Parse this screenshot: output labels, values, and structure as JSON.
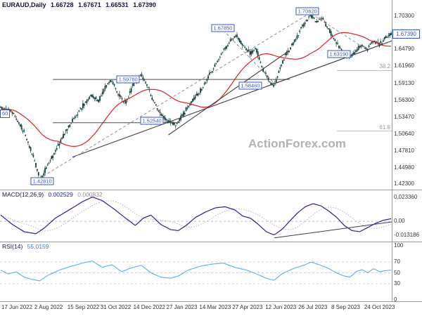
{
  "header": {
    "symbol": "EURAUD,Daily",
    "open": "1.66728",
    "high": "1.67671",
    "low": "1.66531",
    "close": "1.67390"
  },
  "watermark": "ActionForex.com",
  "indicators": {
    "macd": {
      "label": "MACD(12,26,9)",
      "value": "0.002529",
      "signal_value": "0.000832",
      "axis_labels": [
        {
          "text": "0.023360",
          "v": 0.02336
        },
        {
          "text": "0.00",
          "v": 0
        },
        {
          "text": "-0.013186",
          "v": -0.013186
        }
      ]
    },
    "rsi": {
      "label": "RSI(14)",
      "value": "55.0159",
      "axis_labels": [
        {
          "text": "100",
          "v": 100
        },
        {
          "text": "70",
          "v": 70
        },
        {
          "text": "50",
          "v": 50
        },
        {
          "text": "30",
          "v": 30
        },
        {
          "text": "0",
          "v": 0
        }
      ],
      "levels": [
        70,
        50,
        30
      ]
    }
  },
  "axis": {
    "current_price": "1.67390",
    "main_labels": [
      {
        "text": "1.70300",
        "p": 1.703
      },
      {
        "text": "1.64790",
        "p": 1.6479
      },
      {
        "text": "1.61960",
        "p": 1.6196
      },
      {
        "text": "1.59130",
        "p": 1.5913
      },
      {
        "text": "1.56300",
        "p": 1.563
      },
      {
        "text": "1.53470",
        "p": 1.5347
      },
      {
        "text": "1.50640",
        "p": 1.5064
      },
      {
        "text": "1.47810",
        "p": 1.4781
      },
      {
        "text": "1.44980",
        "p": 1.4498
      },
      {
        "text": "1.42300",
        "p": 1.423
      }
    ],
    "dates": [
      "17 Jun 2022",
      "2 Aug 2022",
      "15 Sep 2022",
      "31 Oct 2022",
      "14 Dec 2022",
      "27 Jan 2023",
      "14 Mar 2023",
      "27 Apr 2023",
      "12 Jun 2023",
      "26 Jul 2023",
      "8 Sep 2023",
      "24 Oct 2023"
    ]
  },
  "annotations": {
    "price_callouts": [
      {
        "text": "1.70620",
        "x": 0.785,
        "p": 1.7062,
        "dy": -5
      },
      {
        "text": "1.67850",
        "x": 0.569,
        "p": 1.6785,
        "dy": -4
      },
      {
        "text": "1.63190",
        "x": 0.865,
        "p": 1.6319,
        "dy": -7
      },
      {
        "text": "1.59760",
        "x": 0.327,
        "p": 1.5976,
        "dy": 0
      },
      {
        "text": "1.58460",
        "x": 0.639,
        "p": 1.5846,
        "dy": -2
      },
      {
        "text": "1.52540",
        "x": 0.388,
        "p": 1.5254,
        "dy": -3
      },
      {
        "text": "1.42810",
        "x": 0.108,
        "p": 1.4281,
        "dy": 0
      }
    ],
    "left_partial_label": {
      "text": "60",
      "p": 1.54
    },
    "fib_labels": [
      {
        "text": "38.2",
        "p": 1.6125
      },
      {
        "text": "61.8",
        "p": 1.5115
      }
    ],
    "sr_lines": [
      {
        "p": 1.5976,
        "x1": 0.135,
        "x2": 0.74
      },
      {
        "p": 1.5254,
        "x1": 0.135,
        "x2": 0.46
      }
    ],
    "trend_lines": [
      {
        "x1": 0.185,
        "p1": 1.468,
        "x2": 1.0,
        "p2": 1.662
      },
      {
        "x1": 0.43,
        "p1": 1.505,
        "x2": 0.73,
        "p2": 1.642
      }
    ],
    "dashed_lines": [
      {
        "x1": 0.1,
        "p1": 1.432,
        "x2": 0.795,
        "p2": 1.71
      },
      {
        "x1": 0.57,
        "p1": 1.68,
        "x2": 0.705,
        "p2": 1.588
      },
      {
        "x1": 0.795,
        "p1": 1.707,
        "x2": 0.935,
        "p2": 1.648
      }
    ],
    "macd_trend_line": {
      "x1": 0.7,
      "v1": -0.016,
      "x2": 1.0,
      "v2": -0.0006
    }
  },
  "chart_data": {
    "type": "candlestick",
    "symbol": "EURAUD",
    "timeframe": "Daily",
    "title": "EURAUD Daily chart with MACD and RSI",
    "ohlc_display": {
      "open": 1.66728,
      "high": 1.67671,
      "low": 1.66531,
      "close": 1.6739
    },
    "y_range": [
      1.416,
      1.728
    ],
    "x_range_dates": [
      "17 Jun 2022",
      "24 Oct 2023"
    ],
    "key_levels": [
      1.7062,
      1.6785,
      1.6319,
      1.5976,
      1.5846,
      1.5254,
      1.4281
    ],
    "ma_window_candles": 45,
    "price_path": [
      [
        0,
        1.551
      ],
      [
        0.03,
        1.543
      ],
      [
        0.06,
        1.512
      ],
      [
        0.085,
        1.468
      ],
      [
        0.102,
        1.43
      ],
      [
        0.12,
        1.452
      ],
      [
        0.15,
        1.49
      ],
      [
        0.185,
        1.53
      ],
      [
        0.21,
        1.552
      ],
      [
        0.235,
        1.572
      ],
      [
        0.25,
        1.56
      ],
      [
        0.27,
        1.585
      ],
      [
        0.285,
        1.597
      ],
      [
        0.3,
        1.575
      ],
      [
        0.32,
        1.556
      ],
      [
        0.34,
        1.588
      ],
      [
        0.36,
        1.607
      ],
      [
        0.375,
        1.59
      ],
      [
        0.39,
        1.565
      ],
      [
        0.41,
        1.54
      ],
      [
        0.43,
        1.528
      ],
      [
        0.45,
        1.522
      ],
      [
        0.465,
        1.536
      ],
      [
        0.48,
        1.552
      ],
      [
        0.5,
        1.568
      ],
      [
        0.52,
        1.585
      ],
      [
        0.54,
        1.61
      ],
      [
        0.56,
        1.632
      ],
      [
        0.575,
        1.65
      ],
      [
        0.59,
        1.662
      ],
      [
        0.605,
        1.672
      ],
      [
        0.62,
        1.655
      ],
      [
        0.64,
        1.641
      ],
      [
        0.655,
        1.65
      ],
      [
        0.67,
        1.618
      ],
      [
        0.685,
        1.6
      ],
      [
        0.7,
        1.585
      ],
      [
        0.715,
        1.612
      ],
      [
        0.73,
        1.638
      ],
      [
        0.745,
        1.652
      ],
      [
        0.76,
        1.668
      ],
      [
        0.775,
        1.688
      ],
      [
        0.795,
        1.705
      ],
      [
        0.81,
        1.694
      ],
      [
        0.825,
        1.699
      ],
      [
        0.84,
        1.682
      ],
      [
        0.855,
        1.665
      ],
      [
        0.87,
        1.65
      ],
      [
        0.885,
        1.638
      ],
      [
        0.895,
        1.633
      ],
      [
        0.91,
        1.645
      ],
      [
        0.925,
        1.655
      ],
      [
        0.94,
        1.648
      ],
      [
        0.955,
        1.662
      ],
      [
        0.97,
        1.655
      ],
      [
        0.985,
        1.666
      ],
      [
        1,
        1.6739
      ]
    ],
    "indicators": [
      {
        "name": "MACD(12,26,9)",
        "current": 0.002529,
        "signal_current": 0.000832,
        "range": [
          -0.013186,
          0.02336
        ],
        "path": [
          [
            0,
            0.006
          ],
          [
            0.03,
            -0.003
          ],
          [
            0.06,
            -0.01
          ],
          [
            0.09,
            -0.012
          ],
          [
            0.11,
            -0.007
          ],
          [
            0.14,
            0.003
          ],
          [
            0.18,
            0.012
          ],
          [
            0.21,
            0.019
          ],
          [
            0.235,
            0.0234
          ],
          [
            0.26,
            0.02
          ],
          [
            0.29,
            0.012
          ],
          [
            0.32,
            0.003
          ],
          [
            0.345,
            -0.004
          ],
          [
            0.365,
            0.003
          ],
          [
            0.385,
            0.006
          ],
          [
            0.41,
            -0.003
          ],
          [
            0.435,
            -0.008
          ],
          [
            0.455,
            -0.009
          ],
          [
            0.475,
            -0.004
          ],
          [
            0.5,
            0.004
          ],
          [
            0.525,
            0.009
          ],
          [
            0.55,
            0.013
          ],
          [
            0.575,
            0.014
          ],
          [
            0.6,
            0.011
          ],
          [
            0.62,
            0.005
          ],
          [
            0.64,
            0.003
          ],
          [
            0.66,
            -0.003
          ],
          [
            0.68,
            -0.01
          ],
          [
            0.7,
            -0.0132
          ],
          [
            0.72,
            -0.008
          ],
          [
            0.74,
            0.0
          ],
          [
            0.76,
            0.008
          ],
          [
            0.78,
            0.014
          ],
          [
            0.8,
            0.017
          ],
          [
            0.82,
            0.015
          ],
          [
            0.84,
            0.01
          ],
          [
            0.86,
            0.004
          ],
          [
            0.88,
            -0.004
          ],
          [
            0.9,
            -0.009
          ],
          [
            0.92,
            -0.01
          ],
          [
            0.94,
            -0.006
          ],
          [
            0.96,
            -0.002
          ],
          [
            0.98,
            0.001
          ],
          [
            1,
            0.0025
          ]
        ]
      },
      {
        "name": "RSI(14)",
        "current": 55.0159,
        "levels": [
          30,
          50,
          70
        ],
        "path": [
          [
            0,
            55
          ],
          [
            0.02,
            48
          ],
          [
            0.04,
            52
          ],
          [
            0.06,
            42
          ],
          [
            0.08,
            38
          ],
          [
            0.1,
            35
          ],
          [
            0.12,
            45
          ],
          [
            0.15,
            55
          ],
          [
            0.18,
            62
          ],
          [
            0.21,
            68
          ],
          [
            0.235,
            72
          ],
          [
            0.26,
            60
          ],
          [
            0.285,
            65
          ],
          [
            0.31,
            52
          ],
          [
            0.33,
            58
          ],
          [
            0.36,
            64
          ],
          [
            0.385,
            50
          ],
          [
            0.41,
            42
          ],
          [
            0.435,
            40
          ],
          [
            0.455,
            44
          ],
          [
            0.48,
            55
          ],
          [
            0.51,
            62
          ],
          [
            0.54,
            66
          ],
          [
            0.57,
            68
          ],
          [
            0.6,
            60
          ],
          [
            0.63,
            55
          ],
          [
            0.655,
            48
          ],
          [
            0.68,
            40
          ],
          [
            0.7,
            36
          ],
          [
            0.72,
            48
          ],
          [
            0.75,
            58
          ],
          [
            0.78,
            65
          ],
          [
            0.795,
            70
          ],
          [
            0.82,
            64
          ],
          [
            0.84,
            58
          ],
          [
            0.86,
            50
          ],
          [
            0.88,
            44
          ],
          [
            0.895,
            42
          ],
          [
            0.91,
            52
          ],
          [
            0.925,
            56
          ],
          [
            0.94,
            50
          ],
          [
            0.955,
            58
          ],
          [
            0.97,
            52
          ],
          [
            0.985,
            54
          ],
          [
            1,
            55.0
          ]
        ]
      }
    ]
  },
  "colors": {
    "candle": "#153f3f",
    "ma": "#e02020",
    "macd": "#2020a0",
    "signal": "#b4b4b4",
    "rsi": "#58acf5",
    "label": "#3a56c8",
    "dashed": "#8f8f8f",
    "trend": "#3c3c3c",
    "sr": "#4a4a4a",
    "separator": "#9a9a9a",
    "watermark": "#b2b2b2"
  }
}
